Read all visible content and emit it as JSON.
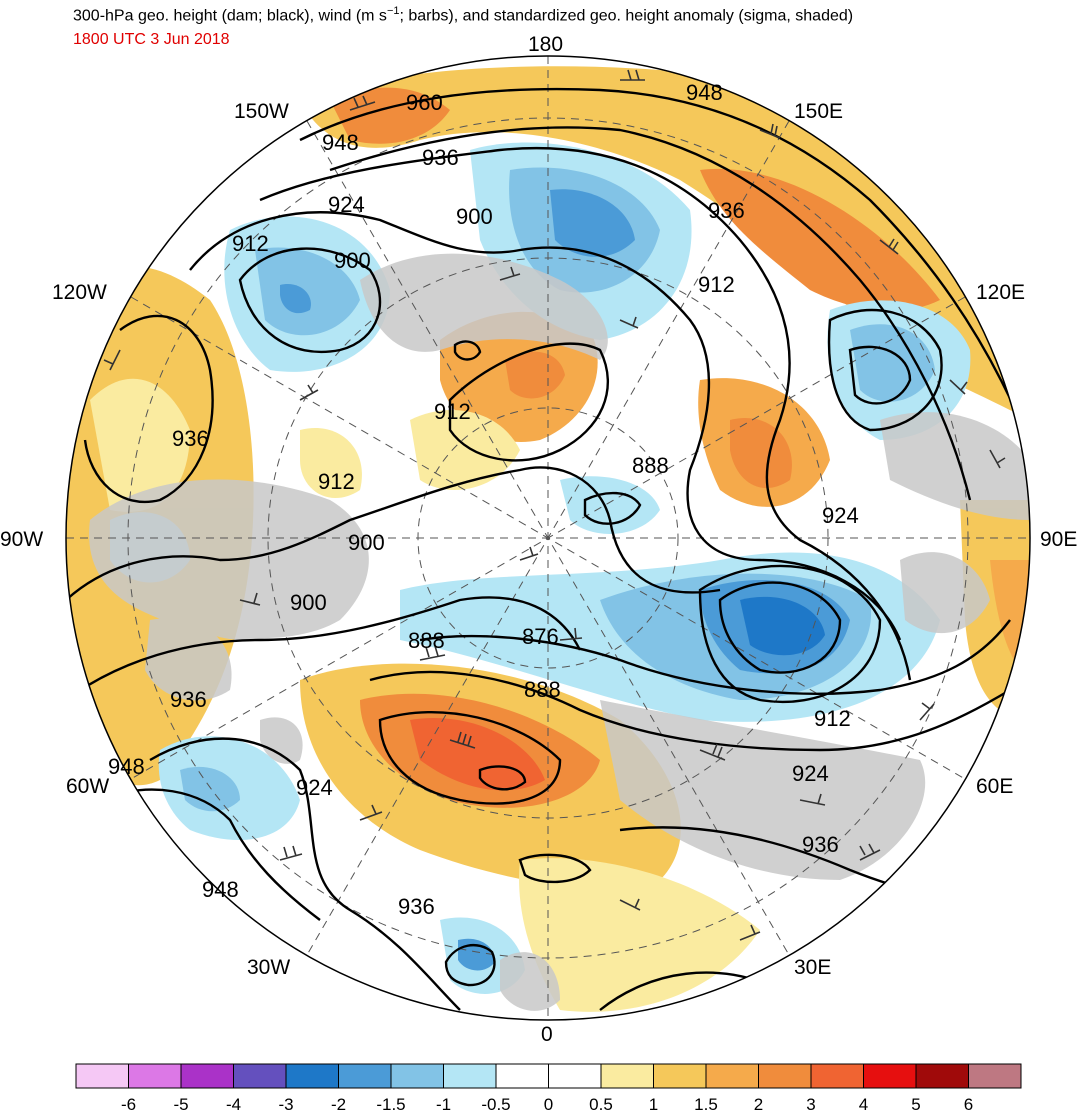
{
  "title_prefix": "300-hPa geo. height (dam; black), wind (m s",
  "title_exponent": "−1",
  "title_suffix": "; barbs), and standardized geo. height anomaly (sigma, shaded)",
  "subtitle": "1800 UTC 3 Jun 2018",
  "colors": {
    "title": "#000000",
    "subtitle": "#e00000",
    "land": "#c8c8c8",
    "contour": "#000000",
    "barb": "#333333"
  },
  "longitude_labels": [
    "180",
    "150E",
    "120E",
    "90E",
    "60E",
    "30E",
    "0",
    "30W",
    "60W",
    "90W",
    "120W",
    "150W"
  ],
  "contour_labels": [
    "960",
    "948",
    "948",
    "936",
    "924",
    "900",
    "936",
    "912",
    "900",
    "912",
    "912",
    "936",
    "888",
    "912",
    "900",
    "924",
    "900",
    "888",
    "876",
    "888",
    "936",
    "912",
    "948",
    "924",
    "924",
    "936",
    "948",
    "936"
  ],
  "colorbar": {
    "colors": [
      "#f5c8f5",
      "#dc78e6",
      "#aa32c8",
      "#6450be",
      "#1e78c8",
      "#4b9bd7",
      "#82c3e6",
      "#b4e6f5",
      "#ffffff",
      "#ffffff",
      "#faeba0",
      "#f5c85a",
      "#f5aa4b",
      "#f08c3c",
      "#f06432",
      "#e60f0f",
      "#a00a0a",
      "#be7882"
    ],
    "tick_labels": [
      "-6",
      "-5",
      "-4",
      "-3",
      "-2",
      "-1.5",
      "-1",
      "-0.5",
      "0",
      "0.5",
      "1",
      "1.5",
      "2",
      "3",
      "4",
      "5",
      "6"
    ]
  }
}
